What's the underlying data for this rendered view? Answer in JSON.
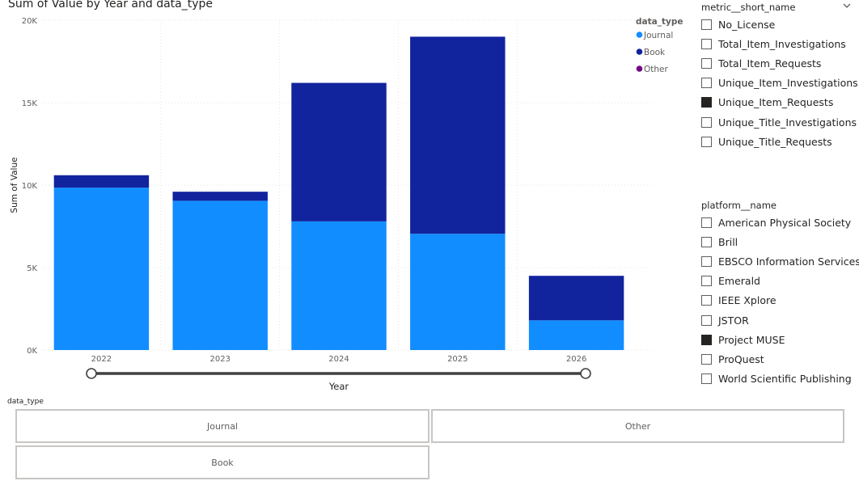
{
  "chart_data": {
    "type": "bar",
    "stacked": true,
    "title": "Sum of Value by Year and data_type",
    "xlabel": "Year",
    "ylabel": "Sum of Value",
    "categories": [
      "2022",
      "2023",
      "2024",
      "2025",
      "2026"
    ],
    "ylim": [
      0,
      20000
    ],
    "yticks": [
      0,
      5000,
      10000,
      15000,
      20000
    ],
    "ytick_labels": [
      "0K",
      "5K",
      "10K",
      "15K",
      "20K"
    ],
    "grid": true,
    "legend": {
      "title": "data_type",
      "placement": "top-right",
      "entries": [
        {
          "name": "Journal",
          "color": "#118dff"
        },
        {
          "name": "Book",
          "color": "#12239e"
        },
        {
          "name": "Other",
          "color": "#750985"
        }
      ]
    },
    "series": [
      {
        "name": "Journal",
        "color": "#118dff",
        "values": [
          9850,
          9050,
          7800,
          7050,
          1800
        ]
      },
      {
        "name": "Book",
        "color": "#12239e",
        "values": [
          750,
          550,
          8400,
          11950,
          2700
        ]
      },
      {
        "name": "Other",
        "color": "#750985",
        "values": [
          0,
          0,
          0,
          0,
          0
        ]
      }
    ]
  },
  "year_slider": {
    "from": "2022",
    "to": "2026"
  },
  "metric_slicer": {
    "title": "metric__short_name",
    "items": [
      {
        "label": "No_License",
        "checked": false
      },
      {
        "label": "Total_Item_Investigations",
        "checked": false
      },
      {
        "label": "Total_Item_Requests",
        "checked": false
      },
      {
        "label": "Unique_Item_Investigations",
        "checked": false
      },
      {
        "label": "Unique_Item_Requests",
        "checked": true
      },
      {
        "label": "Unique_Title_Investigations",
        "checked": false
      },
      {
        "label": "Unique_Title_Requests",
        "checked": false
      }
    ]
  },
  "platform_slicer": {
    "title": "platform__name",
    "items": [
      {
        "label": "American Physical Society",
        "checked": false
      },
      {
        "label": "Brill",
        "checked": false
      },
      {
        "label": "EBSCO Information Services",
        "checked": false
      },
      {
        "label": "Emerald",
        "checked": false
      },
      {
        "label": "IEEE Xplore",
        "checked": false
      },
      {
        "label": "JSTOR",
        "checked": false
      },
      {
        "label": "Project MUSE",
        "checked": true
      },
      {
        "label": "ProQuest",
        "checked": false
      },
      {
        "label": "World Scientific Publishing",
        "checked": false
      }
    ]
  },
  "data_type_tiles": {
    "title": "data_type",
    "tiles": [
      "Journal",
      "Other",
      "Book"
    ]
  },
  "icons": {
    "metric_slicer_menu": "chevron-down-icon"
  }
}
